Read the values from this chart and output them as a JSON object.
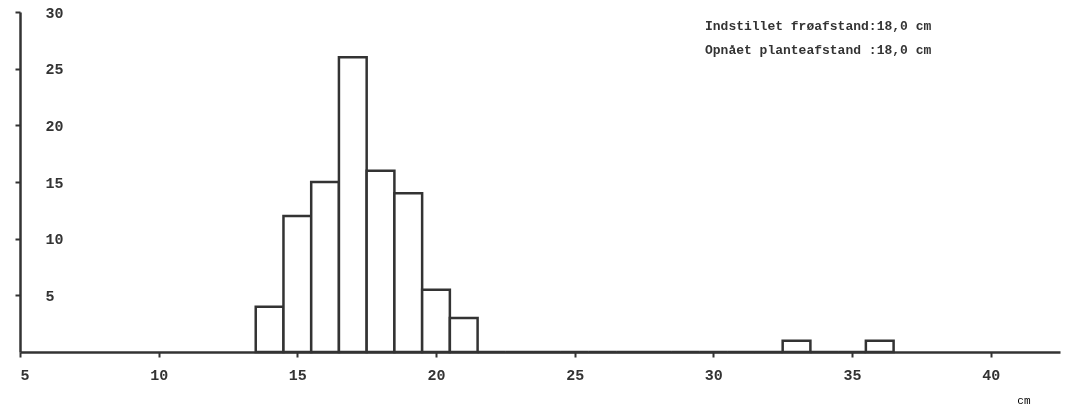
{
  "chart_data": {
    "type": "histogram",
    "annotations": [
      "Indstillet frøafstand:18,0 cm",
      "Opnået planteafstand :18,0 cm"
    ],
    "xlabel": "cm",
    "bins": [
      13.5,
      14.5,
      15.5,
      16.5,
      17.5,
      18.5,
      19.5,
      20.5,
      21.5,
      22.5,
      23.5,
      24.5,
      25.5,
      26.5,
      27.5,
      28.5,
      29.5,
      30.5,
      31.5,
      32.5,
      33.5,
      34.5,
      35.5,
      36.5
    ],
    "values": [
      4,
      12,
      15,
      26,
      16,
      14,
      5.5,
      3,
      0,
      0,
      0,
      0,
      0,
      0,
      0,
      0,
      0,
      0,
      0,
      1,
      0,
      0,
      1
    ],
    "color": "#ffffff",
    "xlim": [
      5,
      42.5
    ],
    "xticks": [
      5,
      10,
      15,
      20,
      25,
      30,
      35,
      40
    ],
    "ylim": [
      0,
      30
    ],
    "yticks": [
      5,
      10,
      15,
      20,
      25,
      30
    ],
    "grid": false
  }
}
